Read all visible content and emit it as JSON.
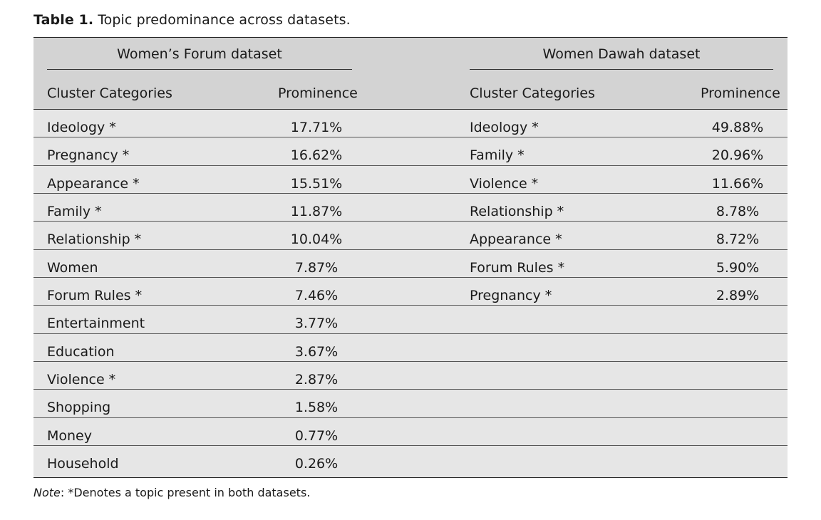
{
  "caption": {
    "label": "Table 1.",
    "text": "Topic predominance across datasets."
  },
  "groups": {
    "left": "Women’s Forum dataset",
    "right": "Women Dawah dataset"
  },
  "columns": {
    "left_category": "Cluster Categories",
    "left_prominence": "Prominence",
    "right_category": "Cluster Categories",
    "right_prominence": "Prominence"
  },
  "rows": [
    {
      "lc": "Ideology *",
      "lp": "17.71%",
      "rc": "Ideology *",
      "rp": "49.88%"
    },
    {
      "lc": "Pregnancy *",
      "lp": "16.62%",
      "rc": "Family *",
      "rp": "20.96%"
    },
    {
      "lc": "Appearance *",
      "lp": "15.51%",
      "rc": "Violence *",
      "rp": "11.66%"
    },
    {
      "lc": "Family *",
      "lp": "11.87%",
      "rc": "Relationship *",
      "rp": "8.78%"
    },
    {
      "lc": "Relationship *",
      "lp": "10.04%",
      "rc": "Appearance *",
      "rp": "8.72%"
    },
    {
      "lc": "Women",
      "lp": "7.87%",
      "rc": "Forum Rules *",
      "rp": "5.90%"
    },
    {
      "lc": "Forum Rules *",
      "lp": "7.46%",
      "rc": "Pregnancy *",
      "rp": "2.89%"
    },
    {
      "lc": "Entertainment",
      "lp": "3.77%",
      "rc": "",
      "rp": ""
    },
    {
      "lc": "Education",
      "lp": "3.67%",
      "rc": "",
      "rp": ""
    },
    {
      "lc": "Violence *",
      "lp": "2.87%",
      "rc": "",
      "rp": ""
    },
    {
      "lc": "Shopping",
      "lp": "1.58%",
      "rc": "",
      "rp": ""
    },
    {
      "lc": "Money",
      "lp": "0.77%",
      "rc": "",
      "rp": ""
    },
    {
      "lc": "Household",
      "lp": "0.26%",
      "rc": "",
      "rp": ""
    }
  ],
  "note": {
    "label": "Note",
    "text": ": *Denotes a topic present in both datasets."
  }
}
